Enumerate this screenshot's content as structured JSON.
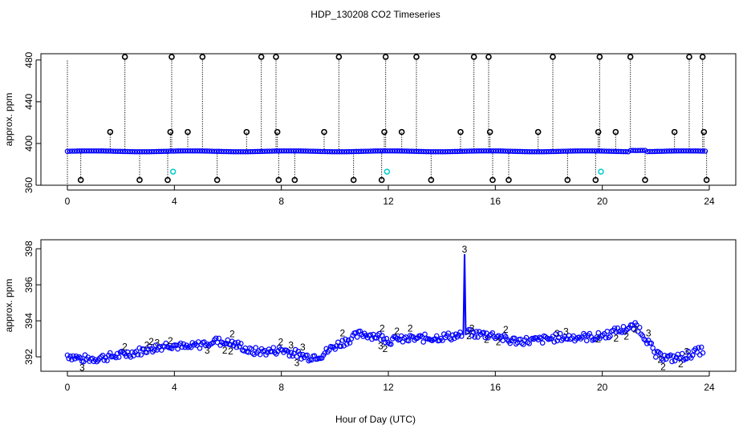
{
  "title": "HDP_130208  CO2 Timeseries",
  "xlabel": "Hour of Day (UTC)",
  "colors": {
    "primary": "#0000ff",
    "secondary": "#00cc00",
    "reference": "#000000",
    "calibration": "#00cccc"
  },
  "chart_data": [
    {
      "type": "scatter",
      "name": "top-panel",
      "ylabel": "approx. ppm",
      "xlim": [
        0,
        24
      ],
      "ylim": [
        360,
        486
      ],
      "xticks": [
        0,
        4,
        8,
        12,
        16,
        20,
        24
      ],
      "yticks": [
        360,
        400,
        440,
        480
      ],
      "baseline": 392.5,
      "calibration_points": [
        {
          "x": 3.95,
          "y": 373
        },
        {
          "x": 11.95,
          "y": 373
        },
        {
          "x": 19.95,
          "y": 373
        }
      ],
      "excursions": [
        {
          "x": 0.5,
          "y": 365
        },
        {
          "x": 1.6,
          "y": 411
        },
        {
          "x": 2.15,
          "y": 483
        },
        {
          "x": 2.7,
          "y": 365
        },
        {
          "x": 3.75,
          "y": 365
        },
        {
          "x": 3.85,
          "y": 411
        },
        {
          "x": 3.9,
          "y": 483
        },
        {
          "x": 4.5,
          "y": 411
        },
        {
          "x": 5.05,
          "y": 483
        },
        {
          "x": 5.6,
          "y": 365
        },
        {
          "x": 6.7,
          "y": 411
        },
        {
          "x": 7.25,
          "y": 483
        },
        {
          "x": 7.8,
          "y": 483
        },
        {
          "x": 7.85,
          "y": 411
        },
        {
          "x": 7.9,
          "y": 365
        },
        {
          "x": 8.5,
          "y": 365
        },
        {
          "x": 9.6,
          "y": 411
        },
        {
          "x": 10.15,
          "y": 483
        },
        {
          "x": 10.7,
          "y": 365
        },
        {
          "x": 11.75,
          "y": 365
        },
        {
          "x": 11.85,
          "y": 411
        },
        {
          "x": 11.9,
          "y": 483
        },
        {
          "x": 12.5,
          "y": 411
        },
        {
          "x": 13.05,
          "y": 483
        },
        {
          "x": 13.6,
          "y": 365
        },
        {
          "x": 14.7,
          "y": 411
        },
        {
          "x": 15.2,
          "y": 483
        },
        {
          "x": 15.75,
          "y": 483
        },
        {
          "x": 15.8,
          "y": 411
        },
        {
          "x": 15.9,
          "y": 365
        },
        {
          "x": 16.5,
          "y": 365
        },
        {
          "x": 17.6,
          "y": 411
        },
        {
          "x": 18.15,
          "y": 483
        },
        {
          "x": 18.7,
          "y": 365
        },
        {
          "x": 19.75,
          "y": 365
        },
        {
          "x": 19.85,
          "y": 411
        },
        {
          "x": 19.9,
          "y": 483
        },
        {
          "x": 20.5,
          "y": 411
        },
        {
          "x": 21.05,
          "y": 483
        },
        {
          "x": 21.6,
          "y": 365
        },
        {
          "x": 22.7,
          "y": 411
        },
        {
          "x": 23.25,
          "y": 483
        },
        {
          "x": 23.75,
          "y": 483
        },
        {
          "x": 23.8,
          "y": 411
        },
        {
          "x": 23.9,
          "y": 365
        }
      ]
    },
    {
      "type": "line",
      "name": "bottom-panel",
      "ylabel": "approx. ppm",
      "xlim": [
        0,
        24
      ],
      "ylim": [
        391.2,
        398.5
      ],
      "xticks": [
        0,
        4,
        8,
        12,
        16,
        20,
        24
      ],
      "yticks": [
        392,
        394,
        396,
        398
      ],
      "series_labels": [
        "2",
        "3"
      ],
      "profile": [
        [
          0.0,
          392.1
        ],
        [
          0.5,
          391.9
        ],
        [
          1.0,
          391.9
        ],
        [
          2.0,
          392.1
        ],
        [
          3.0,
          392.4
        ],
        [
          3.8,
          392.7
        ],
        [
          4.5,
          392.5
        ],
        [
          5.5,
          392.9
        ],
        [
          6.5,
          392.6
        ],
        [
          6.8,
          392.3
        ],
        [
          7.5,
          392.3
        ],
        [
          8.0,
          392.4
        ],
        [
          9.0,
          392.0
        ],
        [
          9.5,
          392.1
        ],
        [
          10.0,
          392.6
        ],
        [
          11.0,
          393.3
        ],
        [
          11.8,
          393.1
        ],
        [
          12.0,
          392.9
        ],
        [
          13.0,
          393.0
        ],
        [
          14.0,
          393.1
        ],
        [
          14.8,
          393.2
        ],
        [
          15.0,
          393.3
        ],
        [
          16.0,
          393.2
        ],
        [
          16.5,
          392.9
        ],
        [
          17.5,
          392.9
        ],
        [
          18.5,
          393.1
        ],
        [
          19.8,
          393.1
        ],
        [
          20.5,
          393.4
        ],
        [
          21.3,
          393.7
        ],
        [
          21.7,
          392.9
        ],
        [
          22.0,
          392.1
        ],
        [
          22.5,
          391.9
        ],
        [
          23.0,
          392.0
        ],
        [
          23.8,
          392.4
        ]
      ],
      "spike": {
        "x": 14.85,
        "peak": 397.7,
        "label": "3"
      }
    }
  ]
}
